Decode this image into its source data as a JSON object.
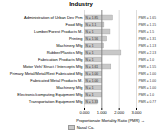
{
  "chart_data": {
    "type": "bar",
    "orientation": "horizontal",
    "title": "Industry",
    "xlabel": "Proportionate Mortality Ratio (PMR)",
    "categories": [
      "Administration of Urban Dev Prm",
      "Food Mfg",
      "Lumber/Forest Products M.",
      "Printing",
      "Machinery Mfg",
      "Rubber/Plastics Mfg",
      "Fabrication Products Mfg",
      "Motor Veh/ Struct / Intercepts Mfg",
      "Primary Metal/Metal/Rest Fabricated Mfg",
      "Fabricated Metal Products M.",
      "Machinery Mfg",
      "Electronic/computing Equipment Mfg",
      "Transportation Equipment Mfg"
    ],
    "series": [
      {
        "name": "Nasal Ca.",
        "color": "#c8c8c8",
        "values": [
          1.65,
          1.15,
          1.5,
          1.31,
          1.13,
          2.13,
          1.0,
          1.55,
          1.0,
          1.0,
          1.0,
          1.0,
          0.77
        ],
        "value_labels": [
          "PMR = 1.65",
          "PMR = 1.15",
          "PMR = 1.5",
          "PMR = 1.31",
          "PMR = 1.13",
          "PMR = 2.13",
          "PMR = 1.0",
          "PMR = 1.55",
          "PMR = 1.00",
          "PMR = 1.00",
          "PMR = 1.00",
          "PMR = 1.0",
          "PMR = 0.77"
        ]
      }
    ],
    "annotations": [
      "N = 1.85",
      "N = 1.1",
      "N = 1",
      "N = 1.56",
      "N = 1",
      "N = 1",
      "N = 1",
      "N = 1.61",
      "N = 1.00",
      "N = 1.00",
      "N = 1",
      "N = 1",
      "N = 1.33"
    ],
    "data_labels": true,
    "reference_line": 1.0,
    "xlim": [
      0.0,
      3.0
    ],
    "xticks": [
      {
        "value": 0.0,
        "label": "0.000"
      },
      {
        "value": 1.0,
        "label": "1.000"
      },
      {
        "value": 2.0,
        "label": "2.000"
      },
      {
        "value": 3.0,
        "label": "3.000"
      }
    ],
    "grid": true,
    "legend": "bottom"
  }
}
